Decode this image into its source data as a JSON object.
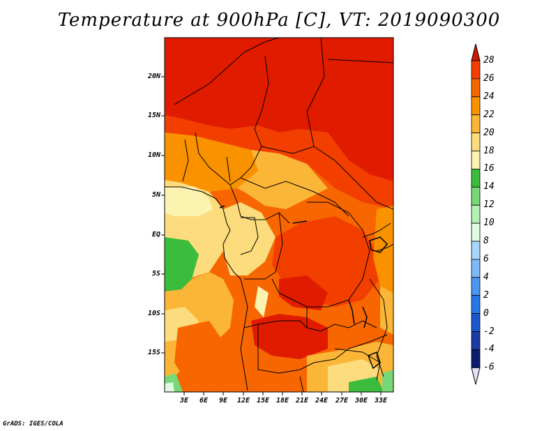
{
  "title": "Temperature at 900hPa [C], VT: 2019090300",
  "footer": "GrADS: IGES/COLA",
  "map": {
    "lat_labels": [
      "20N",
      "15N",
      "10N",
      "5N",
      "EQ",
      "5S",
      "10S",
      "15S"
    ],
    "lon_labels": [
      "3E",
      "6E",
      "9E",
      "12E",
      "15E",
      "18E",
      "21E",
      "24E",
      "27E",
      "30E",
      "33E"
    ],
    "region": "Central Africa"
  },
  "colorbar": {
    "labels": [
      "28",
      "26",
      "24",
      "22",
      "20",
      "18",
      "16",
      "14",
      "12",
      "10",
      "8",
      "6",
      "4",
      "2",
      "0",
      "-2",
      "-4",
      "-6"
    ],
    "colors": [
      "#e01b00",
      "#f23f00",
      "#f76600",
      "#fa9200",
      "#fbb638",
      "#fcdc7c",
      "#fdf3b0",
      "#3cbc3c",
      "#78d877",
      "#b4f0b3",
      "#e0fbe0",
      "#a9d7fb",
      "#7fb8f7",
      "#4b96f2",
      "#2677e6",
      "#1a57cc",
      "#1a3ba3",
      "#0b1b6e",
      "#d9d9f5"
    ],
    "top_color": "#cc1a00",
    "bottom_color": "#e4e4f8"
  }
}
